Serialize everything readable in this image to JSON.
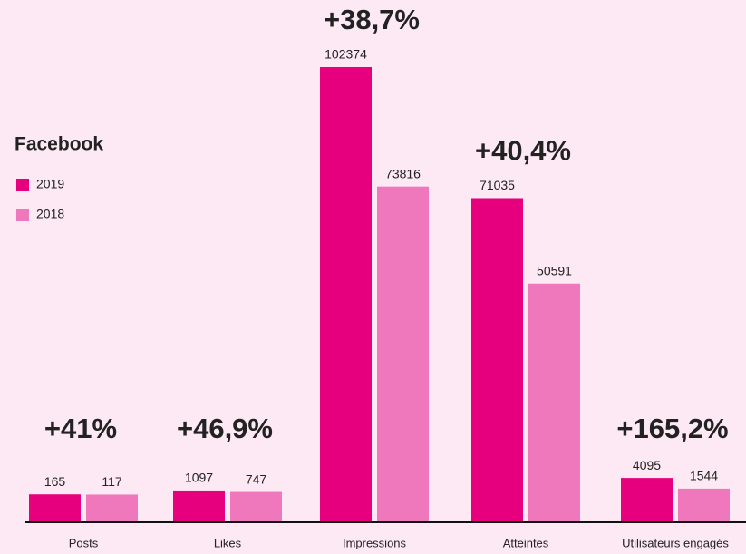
{
  "chart_data": {
    "type": "bar",
    "title": "Facebook",
    "categories": [
      "Posts",
      "Likes",
      "Impressions",
      "Atteintes",
      "Utilisateurs engagés"
    ],
    "series": [
      {
        "name": "2019",
        "color": "#e6007e",
        "values": [
          165,
          1097,
          102374,
          71035,
          4095
        ]
      },
      {
        "name": "2018",
        "color": "#ef78bd",
        "values": [
          117,
          747,
          73816,
          50591,
          1544
        ]
      }
    ],
    "annotations": [
      "+41%",
      "+46,9%",
      "+38,7%",
      "+40,4%",
      "+165,2%"
    ],
    "annotation_color": "#e6007e",
    "legend": "left"
  }
}
